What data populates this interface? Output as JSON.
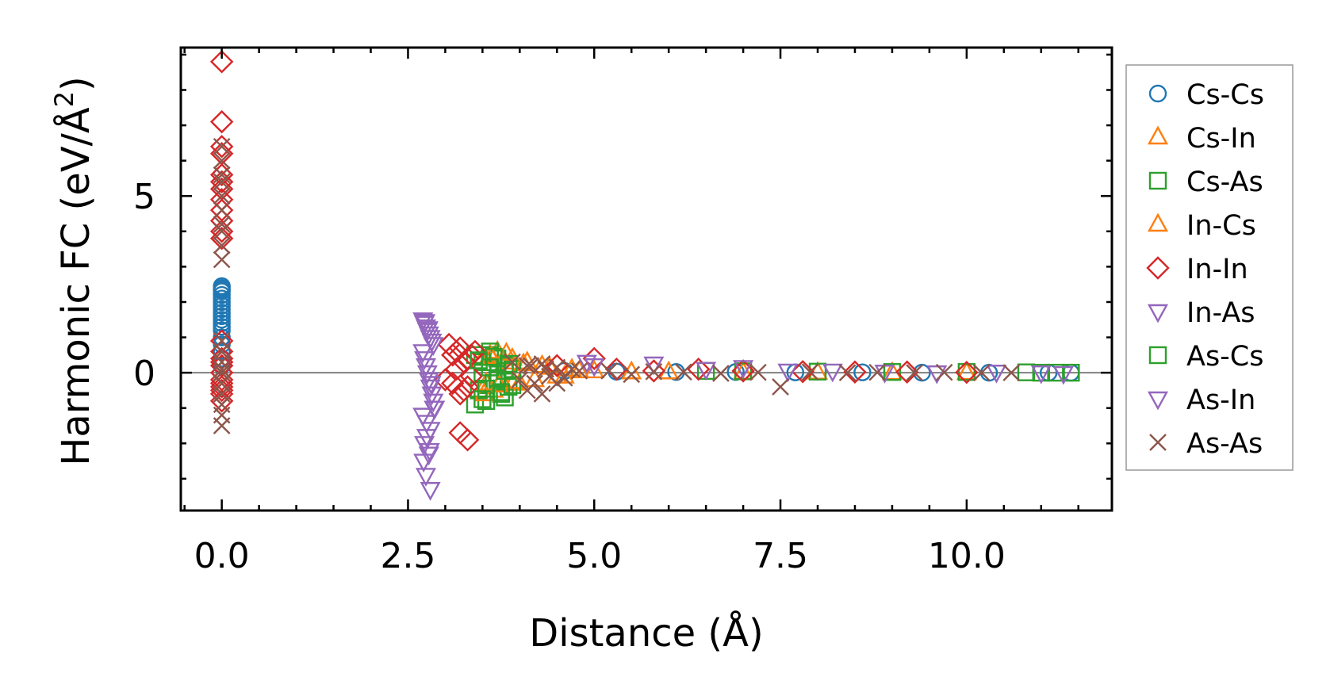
{
  "chart_data": {
    "type": "scatter",
    "title": "",
    "xlabel": "Distance (Å)",
    "ylabel": "Harmonic FC (eV/Å²)",
    "ylabel_main": "Harmonic FC (eV/Å",
    "ylabel_sup": "2",
    "ylabel_close": ")",
    "xlim": [
      -0.55,
      11.95
    ],
    "ylim": [
      -3.9,
      9.2
    ],
    "x_ticks": [
      0.0,
      2.5,
      5.0,
      7.5,
      10.0
    ],
    "x_tick_labels": [
      "0.0",
      "2.5",
      "5.0",
      "7.5",
      "10.0"
    ],
    "y_ticks": [
      0,
      5
    ],
    "y_tick_labels": [
      "0",
      "5"
    ],
    "x_minor_step": 0.5,
    "y_minor_step": 1,
    "grid": false,
    "zero_line": true,
    "legend_position": "outside-right",
    "series": [
      {
        "name": "Cs-Cs",
        "marker": "circle",
        "color": "#1f77b4",
        "x": [
          0,
          0,
          0,
          0,
          0,
          0,
          0,
          0,
          0,
          0,
          0,
          0,
          0,
          0,
          0,
          0,
          0,
          0,
          0,
          0,
          4.6,
          5.3,
          6.1,
          6.9,
          7.7,
          8.6,
          9.4,
          10.3,
          11.1,
          11.4
        ],
        "y": [
          2.45,
          2.4,
          2.35,
          2.3,
          2.2,
          2.1,
          2.0,
          1.9,
          1.8,
          1.7,
          1.6,
          1.5,
          1.4,
          1.3,
          1.2,
          1.0,
          0.8,
          0.6,
          0.4,
          0.2,
          0.05,
          0.03,
          0.02,
          0.02,
          0.01,
          0.01,
          0.0,
          0.0,
          0.0,
          0.0
        ]
      },
      {
        "name": "Cs-In",
        "marker": "triangle-up",
        "color": "#ff7f0e",
        "x": [
          3.5,
          3.55,
          3.6,
          3.65,
          3.7,
          3.75,
          3.8,
          3.9,
          4.0,
          4.1,
          4.3,
          4.5,
          4.7,
          5.0,
          5.5,
          6.0,
          7.0,
          8.0,
          9.0,
          10.0
        ],
        "y": [
          0.4,
          -0.3,
          0.5,
          -0.5,
          0.6,
          -0.2,
          0.3,
          0.4,
          -0.3,
          0.3,
          0.2,
          -0.1,
          0.1,
          0.05,
          0.02,
          0.02,
          0.01,
          0.01,
          0.0,
          0.0
        ]
      },
      {
        "name": "Cs-As",
        "marker": "square",
        "color": "#2ca02c",
        "x": [
          3.4,
          3.45,
          3.5,
          3.55,
          3.6,
          3.65,
          3.7,
          3.75,
          3.8,
          3.85,
          3.9,
          3.4,
          3.5,
          3.6,
          3.7,
          3.8,
          6.5,
          7.0,
          8.0,
          9.0,
          10.0,
          10.8,
          11.0,
          11.2,
          11.4
        ],
        "y": [
          0.5,
          -0.5,
          0.3,
          -0.8,
          0.6,
          -0.3,
          0.4,
          -0.6,
          0.2,
          -0.4,
          0.1,
          -0.9,
          0.0,
          0.5,
          -0.2,
          -0.7,
          0.05,
          0.04,
          0.03,
          0.02,
          0.02,
          0.01,
          0.0,
          0.0,
          0.0
        ]
      },
      {
        "name": "In-Cs",
        "marker": "triangle-up",
        "color": "#ff7f0e",
        "x": [
          3.52,
          3.62,
          3.72,
          3.82,
          3.92,
          4.05,
          4.2,
          4.4,
          4.6,
          4.8
        ],
        "y": [
          -0.6,
          0.45,
          -0.35,
          0.55,
          -0.25,
          0.25,
          -0.2,
          0.15,
          -0.1,
          0.05
        ]
      },
      {
        "name": "In-In",
        "marker": "diamond",
        "color": "#d62728",
        "x": [
          0,
          0,
          0,
          0,
          0,
          0,
          0,
          0,
          0,
          0,
          0,
          0,
          0,
          0,
          0,
          0,
          0,
          0,
          0,
          0,
          0,
          0,
          0,
          0,
          3.05,
          3.1,
          3.15,
          3.2,
          3.25,
          3.3,
          3.35,
          3.4,
          3.1,
          3.2,
          3.3,
          3.0,
          3.15,
          3.25,
          3.35,
          3.2,
          3.3,
          4.5,
          5.0,
          5.3,
          5.8,
          6.4,
          7.0,
          7.8,
          8.5,
          9.2,
          10.0
        ],
        "y": [
          8.8,
          7.1,
          6.4,
          6.2,
          5.6,
          5.4,
          5.2,
          4.9,
          4.6,
          4.3,
          4.0,
          3.8,
          0.9,
          0.6,
          0.4,
          0.2,
          0.0,
          -0.2,
          -0.4,
          -0.6,
          -0.8,
          -0.5,
          0.3,
          -0.3,
          0.8,
          0.5,
          0.6,
          0.7,
          0.3,
          0.4,
          0.5,
          0.6,
          -0.3,
          -0.6,
          -0.4,
          -0.2,
          0.1,
          -0.5,
          -0.1,
          -1.7,
          -1.9,
          0.2,
          0.4,
          0.1,
          0.05,
          0.1,
          0.05,
          0.03,
          0.02,
          0.02,
          0.01
        ]
      },
      {
        "name": "In-As",
        "marker": "triangle-down",
        "color": "#9467bd",
        "x": [
          2.7,
          2.72,
          2.74,
          2.76,
          2.78,
          2.8,
          2.82,
          2.84,
          2.7,
          2.72,
          2.74,
          2.76,
          2.78,
          2.8,
          2.82,
          2.84,
          2.86,
          2.7,
          2.75,
          2.8,
          2.85,
          2.72,
          2.78,
          2.74,
          2.8
        ],
        "y": [
          1.5,
          1.4,
          1.3,
          1.2,
          1.1,
          1.0,
          0.9,
          0.8,
          0.6,
          0.4,
          0.2,
          0.0,
          -0.2,
          -0.4,
          -0.6,
          -0.8,
          -1.0,
          -1.2,
          -1.4,
          -1.6,
          -1.0,
          -2.0,
          -2.3,
          -2.9,
          -3.3
        ]
      },
      {
        "name": "As-Cs",
        "marker": "square",
        "color": "#2ca02c",
        "x": [
          3.45,
          3.55,
          3.65,
          3.75,
          3.85,
          3.5,
          3.6,
          3.7,
          3.8,
          3.9
        ],
        "y": [
          0.35,
          -0.45,
          0.45,
          -0.55,
          0.25,
          -0.75,
          0.15,
          -0.15,
          0.05,
          -0.35
        ]
      },
      {
        "name": "As-In",
        "marker": "triangle-down",
        "color": "#9467bd",
        "x": [
          2.73,
          2.77,
          2.81,
          2.75,
          2.79,
          2.71,
          4.9,
          5.0,
          5.8,
          6.5,
          7.0,
          7.6,
          8.2,
          8.9,
          9.6,
          10.4,
          11.0,
          11.3
        ],
        "y": [
          1.45,
          1.25,
          -0.3,
          -1.8,
          -2.2,
          -2.5,
          0.3,
          0.2,
          0.25,
          0.1,
          0.15,
          0.05,
          0.05,
          0.02,
          0.0,
          0.02,
          0.0,
          -0.02
        ]
      },
      {
        "name": "As-As",
        "marker": "x",
        "color": "#8c564b",
        "x": [
          0,
          0,
          0,
          0,
          0,
          0,
          0,
          0,
          0,
          0,
          0,
          0,
          0,
          0,
          0,
          0,
          0,
          0,
          0,
          0,
          3.9,
          4.0,
          4.1,
          4.2,
          4.3,
          4.4,
          4.5,
          4.6,
          4.7,
          4.8,
          4.1,
          4.3,
          4.5,
          4.15,
          4.35,
          5.2,
          5.5,
          5.8,
          6.2,
          6.7,
          7.2,
          7.5,
          7.9,
          8.4,
          8.8,
          9.3,
          9.7,
          10.2,
          10.6
        ],
        "y": [
          6.4,
          6.0,
          5.6,
          5.4,
          5.0,
          4.6,
          4.2,
          4.0,
          3.6,
          3.2,
          0.9,
          0.6,
          0.3,
          0.0,
          -0.3,
          -0.6,
          -0.9,
          -1.2,
          -1.5,
          0.1,
          0.3,
          -0.2,
          0.2,
          -0.3,
          0.25,
          -0.1,
          0.15,
          -0.15,
          0.1,
          0.05,
          -0.5,
          -0.6,
          -0.3,
          0.2,
          0.1,
          0.05,
          -0.05,
          0.03,
          0.02,
          -0.02,
          0.01,
          -0.4,
          0.02,
          0.0,
          0.01,
          0.0,
          0.01,
          0.0,
          0.0
        ]
      }
    ]
  }
}
